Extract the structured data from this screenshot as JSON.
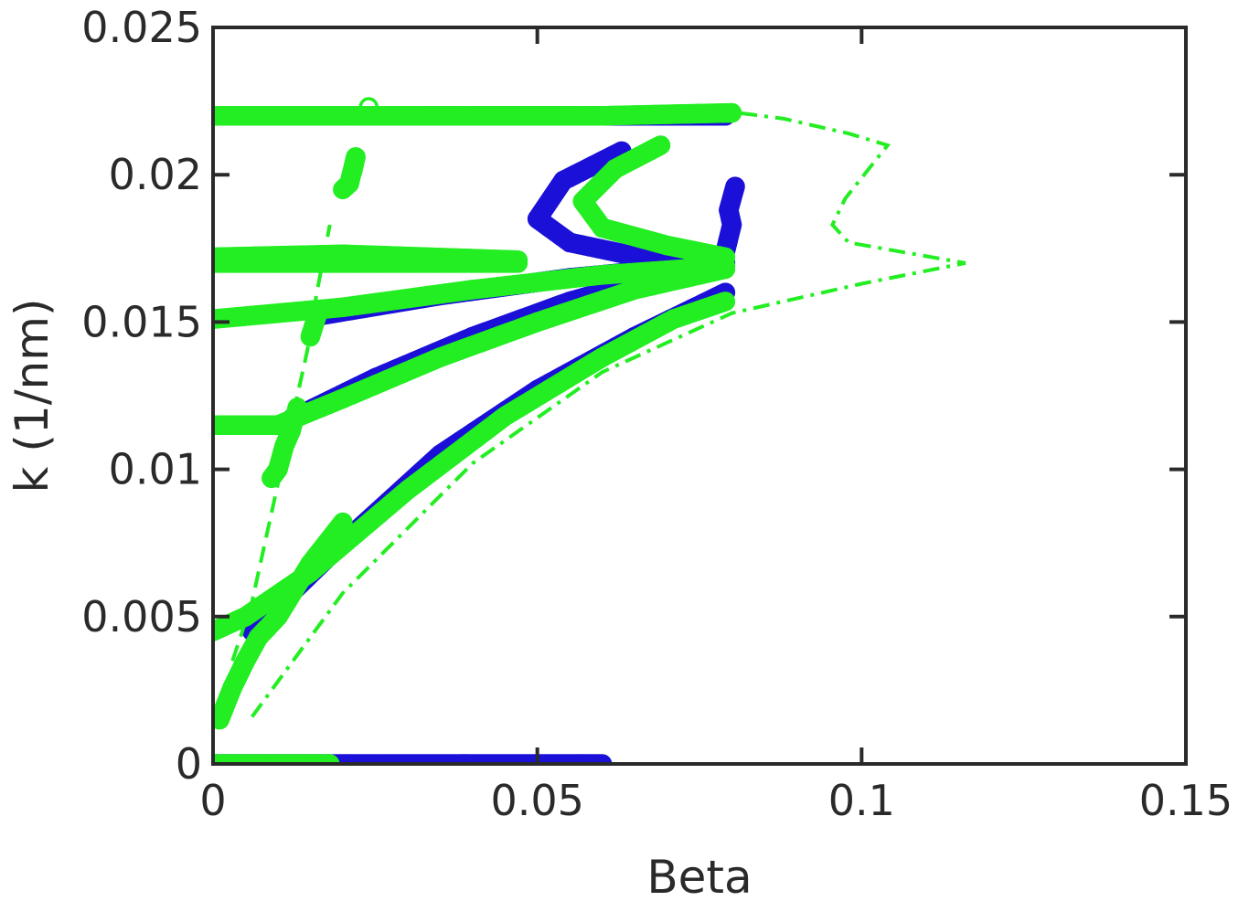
{
  "chart_data": {
    "type": "scatter",
    "xlabel": "Beta",
    "ylabel": "k (1/nm)",
    "xlim": [
      0,
      0.15
    ],
    "ylim": [
      0,
      0.025
    ],
    "xticks": [
      0,
      0.05,
      0.1,
      0.15
    ],
    "xtick_labels": [
      "0",
      "0.05",
      "0.1",
      "0.15"
    ],
    "yticks": [
      0,
      0.005,
      0.01,
      0.015,
      0.02,
      0.025
    ],
    "ytick_labels": [
      "0",
      "0.005",
      "0.01",
      "0.015",
      "0.02",
      "0.025"
    ],
    "grid": false,
    "legend": "none",
    "colors": {
      "blue": "#1a10d8",
      "green": "#22ee22",
      "axis": "#2a2a2a"
    },
    "series": [
      {
        "color": "blue",
        "style": "markers",
        "branches": [
          [
            [
              0.0,
              0.0
            ],
            [
              0.06,
              0.0
            ]
          ],
          [
            [
              0.006,
              0.0045
            ],
            [
              0.02,
              0.0075
            ],
            [
              0.035,
              0.0105
            ],
            [
              0.05,
              0.0127
            ],
            [
              0.065,
              0.0145
            ],
            [
              0.079,
              0.016
            ]
          ],
          [
            [
              0.012,
              0.0117
            ],
            [
              0.025,
              0.0131
            ],
            [
              0.04,
              0.0145
            ],
            [
              0.055,
              0.0157
            ],
            [
              0.068,
              0.0165
            ],
            [
              0.079,
              0.017
            ]
          ],
          [
            [
              0.016,
              0.0152
            ],
            [
              0.035,
              0.0159
            ],
            [
              0.055,
              0.0165
            ],
            [
              0.079,
              0.017
            ]
          ],
          [
            [
              0.032,
              0.022
            ],
            [
              0.045,
              0.022
            ],
            [
              0.06,
              0.022
            ],
            [
              0.079,
              0.022
            ]
          ],
          [
            [
              0.063,
              0.0208
            ],
            [
              0.054,
              0.0198
            ],
            [
              0.05,
              0.0185
            ],
            [
              0.055,
              0.0177
            ],
            [
              0.068,
              0.0171
            ],
            [
              0.079,
              0.0169
            ]
          ],
          [
            [
              0.079,
              0.0174
            ],
            [
              0.08,
              0.0183
            ],
            [
              0.0795,
              0.0188
            ],
            [
              0.0805,
              0.0196
            ]
          ]
        ]
      },
      {
        "color": "green",
        "style": "markers",
        "branches": [
          [
            [
              0.0,
              0.0
            ],
            [
              0.018,
              0.0
            ]
          ],
          [
            [
              0.0,
              0.0045
            ],
            [
              0.005,
              0.005
            ],
            [
              0.015,
              0.0065
            ],
            [
              0.03,
              0.0093
            ],
            [
              0.045,
              0.0118
            ],
            [
              0.06,
              0.0138
            ],
            [
              0.071,
              0.0151
            ],
            [
              0.079,
              0.0157
            ]
          ],
          [
            [
              0.0,
              0.0115
            ],
            [
              0.01,
              0.0115
            ],
            [
              0.02,
              0.0124
            ],
            [
              0.035,
              0.0138
            ],
            [
              0.05,
              0.015
            ],
            [
              0.065,
              0.0161
            ],
            [
              0.079,
              0.0168
            ]
          ],
          [
            [
              0.0,
              0.0151
            ],
            [
              0.02,
              0.0155
            ],
            [
              0.04,
              0.0161
            ],
            [
              0.06,
              0.0166
            ],
            [
              0.079,
              0.0169
            ]
          ],
          [
            [
              0.0,
              0.017
            ],
            [
              0.047,
              0.017
            ]
          ],
          [
            [
              0.0,
              0.0172
            ],
            [
              0.02,
              0.0173
            ],
            [
              0.047,
              0.0171
            ]
          ],
          [
            [
              0.0,
              0.022
            ],
            [
              0.03,
              0.022
            ],
            [
              0.06,
              0.022
            ],
            [
              0.08,
              0.0221
            ]
          ],
          [
            [
              0.069,
              0.021
            ],
            [
              0.062,
              0.0202
            ],
            [
              0.057,
              0.0191
            ],
            [
              0.06,
              0.0182
            ],
            [
              0.07,
              0.0176
            ],
            [
              0.079,
              0.0172
            ]
          ],
          [
            [
              0.001,
              0.0015
            ],
            [
              0.003,
              0.0026
            ],
            [
              0.005,
              0.0035
            ],
            [
              0.007,
              0.0043
            ],
            [
              0.01,
              0.005
            ],
            [
              0.015,
              0.0068
            ],
            [
              0.02,
              0.0082
            ]
          ],
          [
            [
              0.009,
              0.0097
            ],
            [
              0.01,
              0.01
            ],
            [
              0.011,
              0.0108
            ],
            [
              0.012,
              0.0113
            ],
            [
              0.013,
              0.0121
            ]
          ],
          [
            [
              0.015,
              0.0145
            ],
            [
              0.016,
              0.0152
            ]
          ],
          [
            [
              0.02,
              0.0195
            ],
            [
              0.021,
              0.0197
            ],
            [
              0.022,
              0.0206
            ],
            [
              0.0215,
              0.0201
            ]
          ],
          [
            [
              0.024,
              0.0223
            ]
          ]
        ]
      },
      {
        "color": "green",
        "style": "dash-dot",
        "branches": [
          [
            [
              0.006,
              0.0016
            ],
            [
              0.02,
              0.0058
            ],
            [
              0.04,
              0.0102
            ],
            [
              0.06,
              0.0133
            ],
            [
              0.08,
              0.0153
            ],
            [
              0.1,
              0.0163
            ],
            [
              0.116,
              0.017
            ],
            [
              0.098,
              0.0177
            ],
            [
              0.0955,
              0.0183
            ],
            [
              0.0975,
              0.0192
            ],
            [
              0.104,
              0.021
            ],
            [
              0.098,
              0.0214
            ],
            [
              0.088,
              0.0219
            ],
            [
              0.081,
              0.0221
            ]
          ]
        ]
      },
      {
        "color": "green",
        "style": "dashed",
        "branches": [
          [
            [
              0.003,
              0.0035
            ],
            [
              0.006,
              0.0055
            ],
            [
              0.009,
              0.0085
            ],
            [
              0.012,
              0.0115
            ],
            [
              0.0145,
              0.014
            ],
            [
              0.016,
              0.016
            ],
            [
              0.018,
              0.0183
            ]
          ]
        ]
      }
    ]
  }
}
